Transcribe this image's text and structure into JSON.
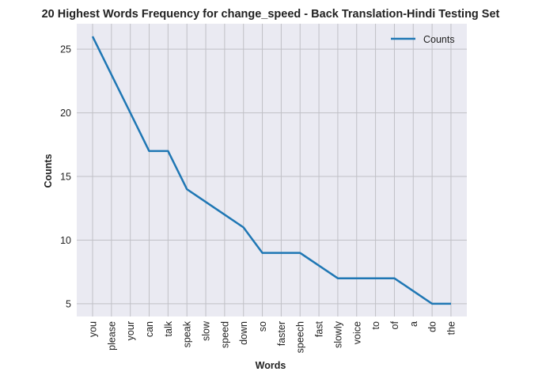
{
  "chart_data": {
    "type": "line",
    "title": "20 Highest Words Frequency for change_speed - Back Translation-Hindi Testing Set",
    "xlabel": "Words",
    "ylabel": "Counts",
    "categories": [
      "you",
      "please",
      "your",
      "can",
      "talk",
      "speak",
      "slow",
      "speed",
      "down",
      "so",
      "faster",
      "speech",
      "fast",
      "slowly",
      "voice",
      "to",
      "of",
      "a",
      "do",
      "the"
    ],
    "series": [
      {
        "name": "Counts",
        "values": [
          26,
          23,
          20,
          17,
          17,
          14,
          13,
          12,
          11,
          9,
          9,
          9,
          8,
          7,
          7,
          7,
          7,
          6,
          5,
          5
        ],
        "color": "#1f77b4"
      }
    ],
    "yticks": [
      5,
      10,
      15,
      20,
      25
    ],
    "ylim": [
      4,
      27
    ],
    "grid": true,
    "legend": "top-right",
    "colors": {
      "background": "#eaeaf2",
      "grid": "#c0c0c6",
      "line": "#1f77b4"
    }
  }
}
